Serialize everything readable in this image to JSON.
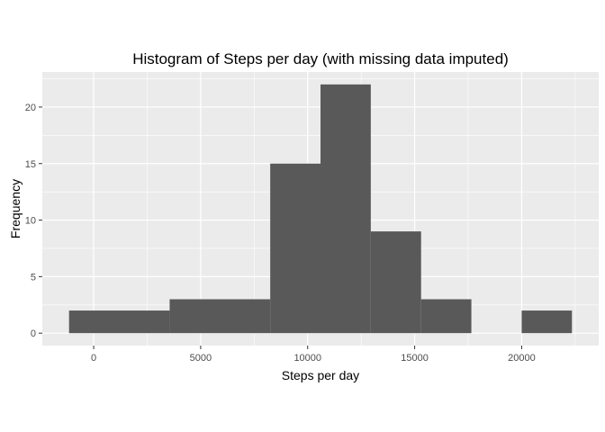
{
  "chart_data": {
    "type": "bar",
    "title": "Histogram of Steps per day (with missing data imputed)",
    "xlabel": "Steps per day",
    "ylabel": "Frequency",
    "bins": [
      {
        "x0": -1150,
        "x1": 3550,
        "count": 2
      },
      {
        "x0": 3550,
        "x1": 8250,
        "count": 3
      },
      {
        "x0": 8250,
        "x1": 10600,
        "count": 15
      },
      {
        "x0": 10600,
        "x1": 12950,
        "count": 22
      },
      {
        "x0": 12950,
        "x1": 15300,
        "count": 9
      },
      {
        "x0": 15300,
        "x1": 17650,
        "count": 3
      },
      {
        "x0": 20000,
        "x1": 22350,
        "count": 2
      }
    ],
    "xlim": [
      -2400,
      23600
    ],
    "ylim": [
      -1.1,
      23.1
    ],
    "xticks": [
      0,
      5000,
      10000,
      15000,
      20000
    ],
    "xtick_labels": [
      "0",
      "5000",
      "10000",
      "15000",
      "20000"
    ],
    "yticks": [
      0,
      5,
      10,
      15,
      20
    ],
    "ytick_labels": [
      "0",
      "5",
      "10",
      "15",
      "20"
    ],
    "grid": true,
    "bar_color": "#595959",
    "panel_color": "#ebebeb",
    "grid_color": "#ffffff"
  }
}
